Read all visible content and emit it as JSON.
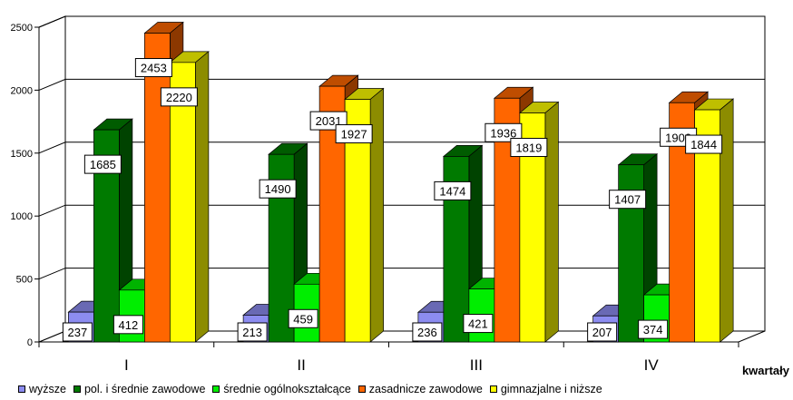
{
  "chart_data": {
    "type": "bar",
    "categories": [
      "I",
      "II",
      "III",
      "IV"
    ],
    "xlabel": "kwartały",
    "ylabel": "",
    "ylim": [
      0,
      2500
    ],
    "yticks": [
      0,
      500,
      1000,
      1500,
      2000,
      2500
    ],
    "grid": true,
    "legend_position": "bottom",
    "series": [
      {
        "name": "wyższe",
        "values": [
          237,
          213,
          236,
          207
        ],
        "color": "#8c8cf0"
      },
      {
        "name": "pol. i średnie zawodowe",
        "values": [
          1685,
          1490,
          1474,
          1407
        ],
        "color": "#007a00"
      },
      {
        "name": "średnie ogólnokształcące",
        "values": [
          412,
          459,
          421,
          374
        ],
        "color": "#00ee00"
      },
      {
        "name": "zasadnicze zawodowe",
        "values": [
          2453,
          2031,
          1936,
          1900
        ],
        "color": "#ff6600"
      },
      {
        "name": "gimnazjalne i niższe",
        "values": [
          2220,
          1927,
          1819,
          1844
        ],
        "color": "#ffff00"
      }
    ]
  }
}
